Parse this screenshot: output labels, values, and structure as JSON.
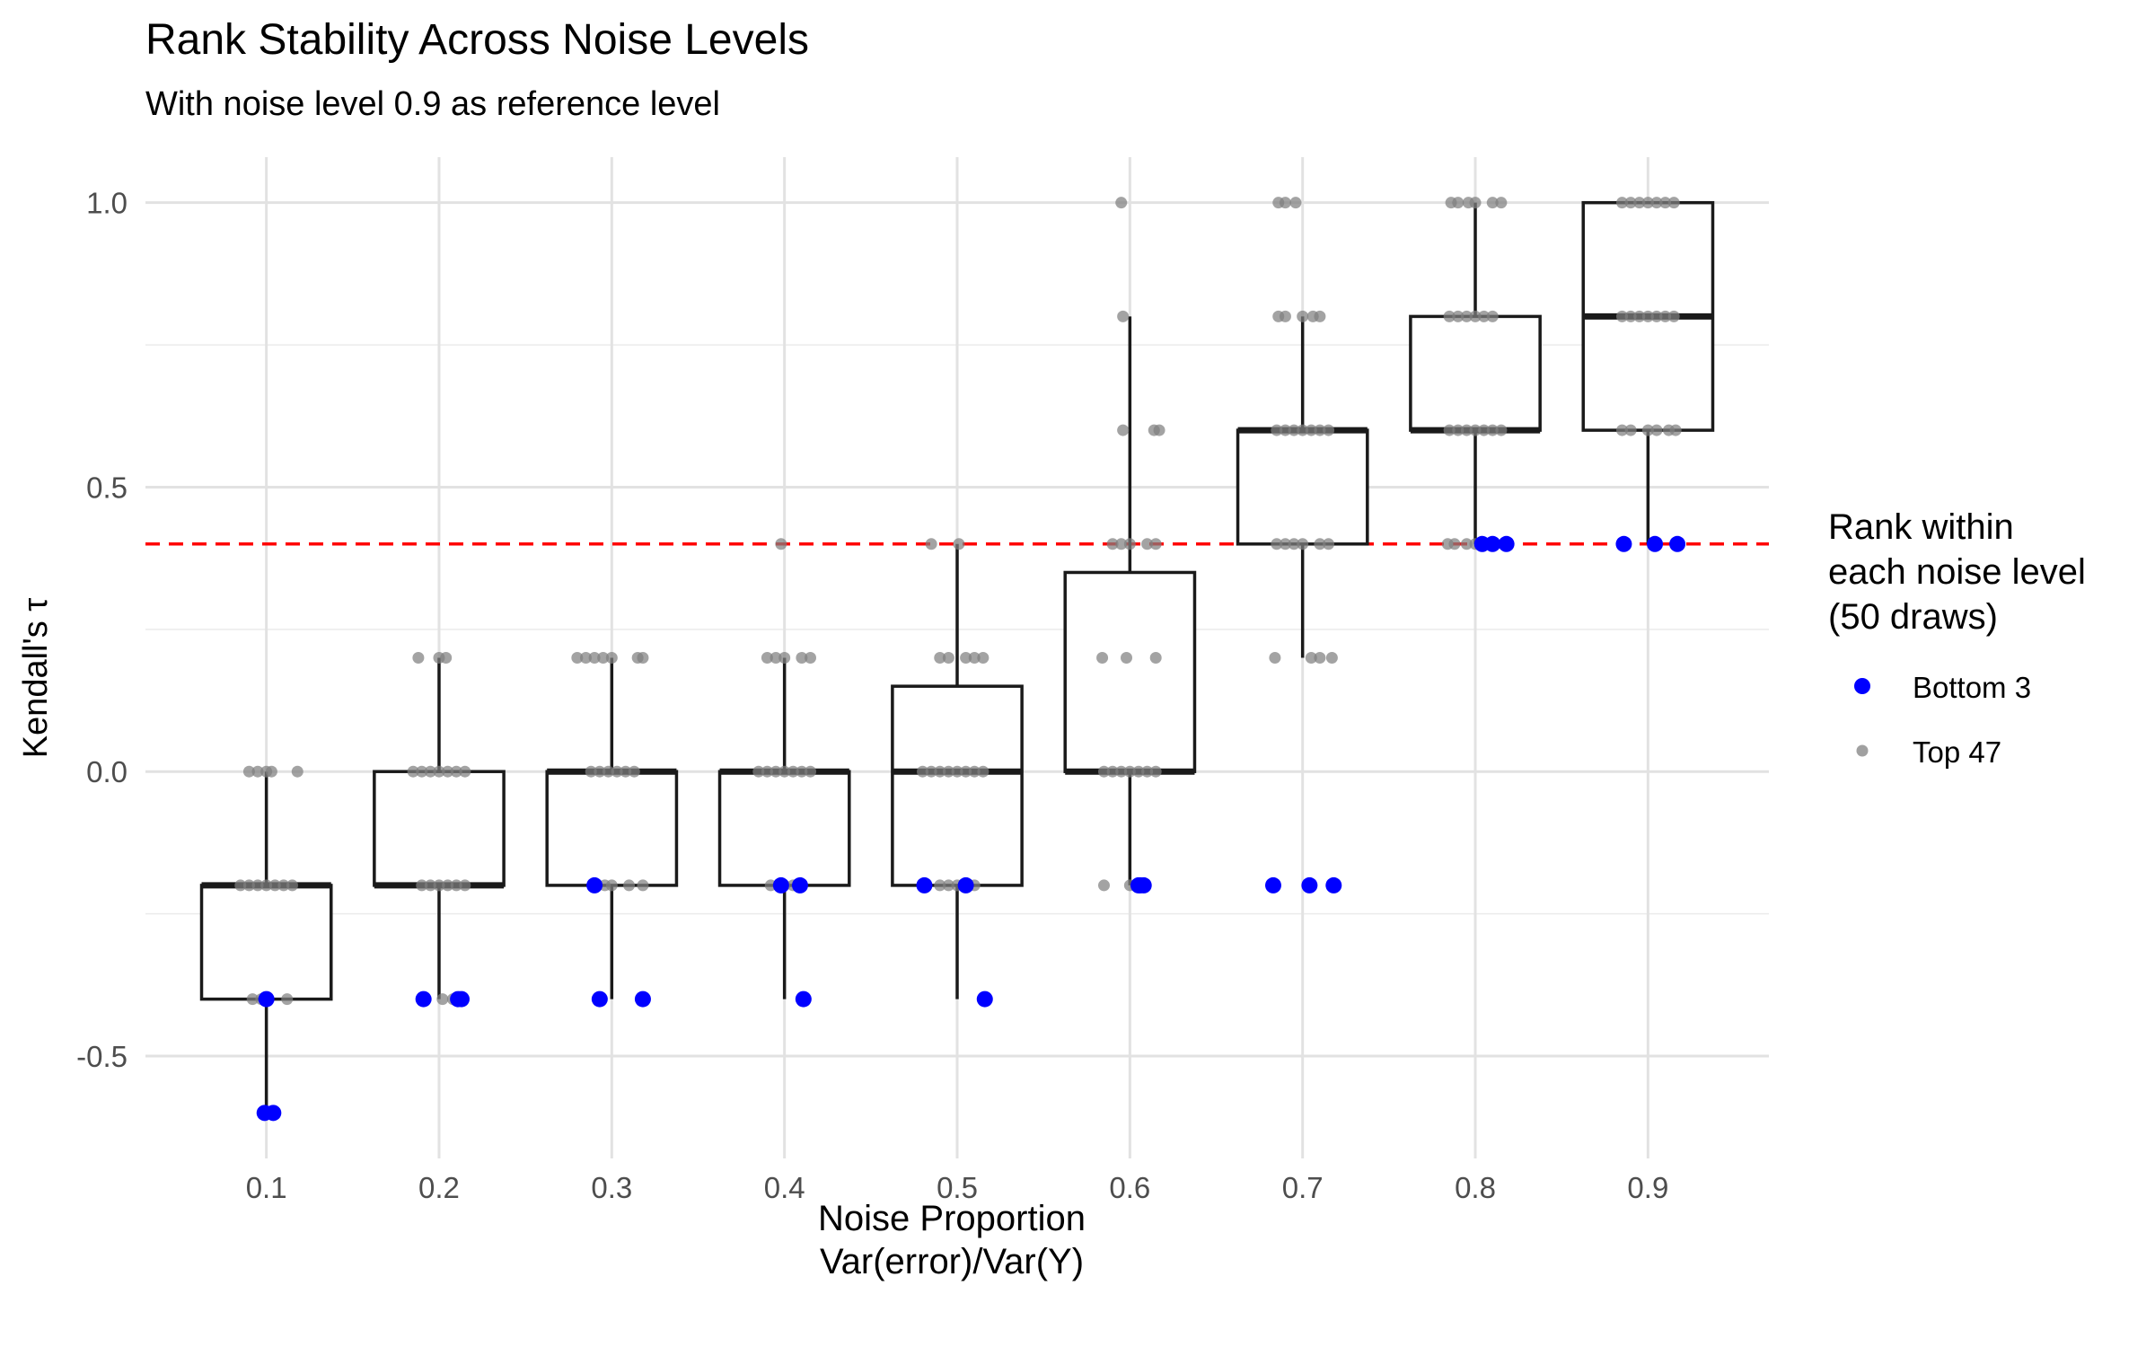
{
  "chart_data": {
    "type": "box",
    "title": "Rank Stability Across Noise Levels",
    "subtitle": "With noise level 0.9 as reference level",
    "xlabel_line1": "Noise Proportion",
    "xlabel_line2": "Var(error)/Var(Y)",
    "ylabel": "Kendall's τ",
    "categories": [
      "0.1",
      "0.2",
      "0.3",
      "0.4",
      "0.5",
      "0.6",
      "0.7",
      "0.8",
      "0.9"
    ],
    "x_values": [
      0.1,
      0.2,
      0.3,
      0.4,
      0.5,
      0.6,
      0.7,
      0.8,
      0.9
    ],
    "y_ticks": [
      -0.5,
      0.0,
      0.5,
      1.0
    ],
    "y_tick_labels": [
      "-0.5",
      "0.0",
      "0.5",
      "1.0"
    ],
    "ylim": [
      -0.68,
      1.08
    ],
    "xlim": [
      0.03,
      0.97
    ],
    "grid": true,
    "reference_line": {
      "y": 0.4,
      "color": "#ff0000",
      "style": "dashed"
    },
    "boxes": [
      {
        "x": 0.1,
        "q1": -0.4,
        "median": -0.2,
        "q3": -0.2,
        "whisker_low": -0.6,
        "whisker_high": 0.0
      },
      {
        "x": 0.2,
        "q1": -0.2,
        "median": -0.2,
        "q3": 0.0,
        "whisker_low": -0.4,
        "whisker_high": 0.2
      },
      {
        "x": 0.3,
        "q1": -0.2,
        "median": 0.0,
        "q3": 0.0,
        "whisker_low": -0.4,
        "whisker_high": 0.2
      },
      {
        "x": 0.4,
        "q1": -0.2,
        "median": 0.0,
        "q3": 0.0,
        "whisker_low": -0.4,
        "whisker_high": 0.2
      },
      {
        "x": 0.5,
        "q1": -0.2,
        "median": 0.0,
        "q3": 0.15,
        "whisker_low": -0.4,
        "whisker_high": 0.4
      },
      {
        "x": 0.6,
        "q1": 0.0,
        "median": 0.0,
        "q3": 0.35,
        "whisker_low": -0.2,
        "whisker_high": 0.8
      },
      {
        "x": 0.7,
        "q1": 0.4,
        "median": 0.6,
        "q3": 0.6,
        "whisker_low": 0.2,
        "whisker_high": 0.8
      },
      {
        "x": 0.8,
        "q1": 0.6,
        "median": 0.6,
        "q3": 0.8,
        "whisker_low": 0.4,
        "whisker_high": 1.0
      },
      {
        "x": 0.9,
        "q1": 0.6,
        "median": 0.8,
        "q3": 1.0,
        "whisker_low": 0.4,
        "whisker_high": 1.0
      }
    ],
    "legend": {
      "title_lines": [
        "Rank within",
        "each noise level",
        "(50 draws)"
      ],
      "placement": "right",
      "entries": [
        {
          "name": "Bottom 3",
          "color": "#0000ff"
        },
        {
          "name": "Top 47",
          "color": "#808080"
        }
      ]
    },
    "series": [
      {
        "name": "Bottom 3",
        "color": "#0000ff",
        "points": [
          {
            "x": 0.1,
            "y": -0.4
          },
          {
            "x": 0.099,
            "y": -0.6
          },
          {
            "x": 0.104,
            "y": -0.6
          },
          {
            "x": 0.191,
            "y": -0.4
          },
          {
            "x": 0.211,
            "y": -0.4
          },
          {
            "x": 0.213,
            "y": -0.4
          },
          {
            "x": 0.29,
            "y": -0.2
          },
          {
            "x": 0.293,
            "y": -0.4
          },
          {
            "x": 0.318,
            "y": -0.4
          },
          {
            "x": 0.398,
            "y": -0.2
          },
          {
            "x": 0.409,
            "y": -0.2
          },
          {
            "x": 0.411,
            "y": -0.4
          },
          {
            "x": 0.481,
            "y": -0.2
          },
          {
            "x": 0.505,
            "y": -0.2
          },
          {
            "x": 0.516,
            "y": -0.4
          },
          {
            "x": 0.605,
            "y": -0.2
          },
          {
            "x": 0.608,
            "y": -0.2
          },
          {
            "x": 0.606,
            "y": -0.2
          },
          {
            "x": 0.683,
            "y": -0.2
          },
          {
            "x": 0.704,
            "y": -0.2
          },
          {
            "x": 0.718,
            "y": -0.2
          },
          {
            "x": 0.804,
            "y": 0.4
          },
          {
            "x": 0.81,
            "y": 0.4
          },
          {
            "x": 0.818,
            "y": 0.4
          },
          {
            "x": 0.886,
            "y": 0.4
          },
          {
            "x": 0.904,
            "y": 0.4
          },
          {
            "x": 0.917,
            "y": 0.4
          }
        ]
      },
      {
        "name": "Top 47",
        "color": "#808080",
        "points": [
          {
            "x": 0.09,
            "y": 0.0
          },
          {
            "x": 0.095,
            "y": 0.0
          },
          {
            "x": 0.1,
            "y": 0.0
          },
          {
            "x": 0.103,
            "y": 0.0
          },
          {
            "x": 0.118,
            "y": 0.0
          },
          {
            "x": 0.085,
            "y": -0.2
          },
          {
            "x": 0.09,
            "y": -0.2
          },
          {
            "x": 0.095,
            "y": -0.2
          },
          {
            "x": 0.1,
            "y": -0.2
          },
          {
            "x": 0.105,
            "y": -0.2
          },
          {
            "x": 0.11,
            "y": -0.2
          },
          {
            "x": 0.115,
            "y": -0.2
          },
          {
            "x": 0.092,
            "y": -0.4
          },
          {
            "x": 0.097,
            "y": -0.4
          },
          {
            "x": 0.112,
            "y": -0.4
          },
          {
            "x": 0.188,
            "y": 0.2
          },
          {
            "x": 0.2,
            "y": 0.2
          },
          {
            "x": 0.204,
            "y": 0.2
          },
          {
            "x": 0.185,
            "y": 0.0
          },
          {
            "x": 0.19,
            "y": 0.0
          },
          {
            "x": 0.195,
            "y": 0.0
          },
          {
            "x": 0.2,
            "y": 0.0
          },
          {
            "x": 0.205,
            "y": 0.0
          },
          {
            "x": 0.21,
            "y": 0.0
          },
          {
            "x": 0.215,
            "y": 0.0
          },
          {
            "x": 0.19,
            "y": -0.2
          },
          {
            "x": 0.195,
            "y": -0.2
          },
          {
            "x": 0.2,
            "y": -0.2
          },
          {
            "x": 0.205,
            "y": -0.2
          },
          {
            "x": 0.21,
            "y": -0.2
          },
          {
            "x": 0.215,
            "y": -0.2
          },
          {
            "x": 0.202,
            "y": -0.4
          },
          {
            "x": 0.208,
            "y": -0.4
          },
          {
            "x": 0.28,
            "y": 0.2
          },
          {
            "x": 0.285,
            "y": 0.2
          },
          {
            "x": 0.29,
            "y": 0.2
          },
          {
            "x": 0.295,
            "y": 0.2
          },
          {
            "x": 0.3,
            "y": 0.2
          },
          {
            "x": 0.315,
            "y": 0.2
          },
          {
            "x": 0.318,
            "y": 0.2
          },
          {
            "x": 0.288,
            "y": 0.0
          },
          {
            "x": 0.293,
            "y": 0.0
          },
          {
            "x": 0.298,
            "y": 0.0
          },
          {
            "x": 0.303,
            "y": 0.0
          },
          {
            "x": 0.308,
            "y": 0.0
          },
          {
            "x": 0.313,
            "y": 0.0
          },
          {
            "x": 0.296,
            "y": -0.2
          },
          {
            "x": 0.3,
            "y": -0.2
          },
          {
            "x": 0.31,
            "y": -0.2
          },
          {
            "x": 0.318,
            "y": -0.2
          },
          {
            "x": 0.398,
            "y": 0.4
          },
          {
            "x": 0.39,
            "y": 0.2
          },
          {
            "x": 0.395,
            "y": 0.2
          },
          {
            "x": 0.4,
            "y": 0.2
          },
          {
            "x": 0.41,
            "y": 0.2
          },
          {
            "x": 0.415,
            "y": 0.2
          },
          {
            "x": 0.385,
            "y": 0.0
          },
          {
            "x": 0.39,
            "y": 0.0
          },
          {
            "x": 0.395,
            "y": 0.0
          },
          {
            "x": 0.4,
            "y": 0.0
          },
          {
            "x": 0.405,
            "y": 0.0
          },
          {
            "x": 0.41,
            "y": 0.0
          },
          {
            "x": 0.415,
            "y": 0.0
          },
          {
            "x": 0.392,
            "y": -0.2
          },
          {
            "x": 0.4,
            "y": -0.2
          },
          {
            "x": 0.405,
            "y": -0.2
          },
          {
            "x": 0.485,
            "y": 0.4
          },
          {
            "x": 0.501,
            "y": 0.4
          },
          {
            "x": 0.49,
            "y": 0.2
          },
          {
            "x": 0.495,
            "y": 0.2
          },
          {
            "x": 0.505,
            "y": 0.2
          },
          {
            "x": 0.51,
            "y": 0.2
          },
          {
            "x": 0.515,
            "y": 0.2
          },
          {
            "x": 0.48,
            "y": 0.0
          },
          {
            "x": 0.485,
            "y": 0.0
          },
          {
            "x": 0.49,
            "y": 0.0
          },
          {
            "x": 0.495,
            "y": 0.0
          },
          {
            "x": 0.5,
            "y": 0.0
          },
          {
            "x": 0.505,
            "y": 0.0
          },
          {
            "x": 0.51,
            "y": 0.0
          },
          {
            "x": 0.515,
            "y": 0.0
          },
          {
            "x": 0.49,
            "y": -0.2
          },
          {
            "x": 0.495,
            "y": -0.2
          },
          {
            "x": 0.5,
            "y": -0.2
          },
          {
            "x": 0.51,
            "y": -0.2
          },
          {
            "x": 0.595,
            "y": 1.0
          },
          {
            "x": 0.596,
            "y": 0.8
          },
          {
            "x": 0.596,
            "y": 0.6
          },
          {
            "x": 0.614,
            "y": 0.6
          },
          {
            "x": 0.617,
            "y": 0.6
          },
          {
            "x": 0.59,
            "y": 0.4
          },
          {
            "x": 0.595,
            "y": 0.4
          },
          {
            "x": 0.6,
            "y": 0.4
          },
          {
            "x": 0.61,
            "y": 0.4
          },
          {
            "x": 0.615,
            "y": 0.4
          },
          {
            "x": 0.584,
            "y": 0.2
          },
          {
            "x": 0.598,
            "y": 0.2
          },
          {
            "x": 0.615,
            "y": 0.2
          },
          {
            "x": 0.585,
            "y": 0.0
          },
          {
            "x": 0.59,
            "y": 0.0
          },
          {
            "x": 0.595,
            "y": 0.0
          },
          {
            "x": 0.6,
            "y": 0.0
          },
          {
            "x": 0.605,
            "y": 0.0
          },
          {
            "x": 0.61,
            "y": 0.0
          },
          {
            "x": 0.615,
            "y": 0.0
          },
          {
            "x": 0.585,
            "y": -0.2
          },
          {
            "x": 0.6,
            "y": -0.2
          },
          {
            "x": 0.686,
            "y": 1.0
          },
          {
            "x": 0.69,
            "y": 1.0
          },
          {
            "x": 0.696,
            "y": 1.0
          },
          {
            "x": 0.686,
            "y": 0.8
          },
          {
            "x": 0.69,
            "y": 0.8
          },
          {
            "x": 0.7,
            "y": 0.8
          },
          {
            "x": 0.706,
            "y": 0.8
          },
          {
            "x": 0.71,
            "y": 0.8
          },
          {
            "x": 0.685,
            "y": 0.6
          },
          {
            "x": 0.69,
            "y": 0.6
          },
          {
            "x": 0.695,
            "y": 0.6
          },
          {
            "x": 0.7,
            "y": 0.6
          },
          {
            "x": 0.705,
            "y": 0.6
          },
          {
            "x": 0.71,
            "y": 0.6
          },
          {
            "x": 0.715,
            "y": 0.6
          },
          {
            "x": 0.685,
            "y": 0.4
          },
          {
            "x": 0.69,
            "y": 0.4
          },
          {
            "x": 0.695,
            "y": 0.4
          },
          {
            "x": 0.7,
            "y": 0.4
          },
          {
            "x": 0.71,
            "y": 0.4
          },
          {
            "x": 0.715,
            "y": 0.4
          },
          {
            "x": 0.684,
            "y": 0.2
          },
          {
            "x": 0.705,
            "y": 0.2
          },
          {
            "x": 0.71,
            "y": 0.2
          },
          {
            "x": 0.717,
            "y": 0.2
          },
          {
            "x": 0.786,
            "y": 1.0
          },
          {
            "x": 0.79,
            "y": 1.0
          },
          {
            "x": 0.796,
            "y": 1.0
          },
          {
            "x": 0.8,
            "y": 1.0
          },
          {
            "x": 0.81,
            "y": 1.0
          },
          {
            "x": 0.815,
            "y": 1.0
          },
          {
            "x": 0.785,
            "y": 0.8
          },
          {
            "x": 0.79,
            "y": 0.8
          },
          {
            "x": 0.795,
            "y": 0.8
          },
          {
            "x": 0.8,
            "y": 0.8
          },
          {
            "x": 0.805,
            "y": 0.8
          },
          {
            "x": 0.81,
            "y": 0.8
          },
          {
            "x": 0.785,
            "y": 0.6
          },
          {
            "x": 0.79,
            "y": 0.6
          },
          {
            "x": 0.795,
            "y": 0.6
          },
          {
            "x": 0.8,
            "y": 0.6
          },
          {
            "x": 0.805,
            "y": 0.6
          },
          {
            "x": 0.81,
            "y": 0.6
          },
          {
            "x": 0.815,
            "y": 0.6
          },
          {
            "x": 0.784,
            "y": 0.4
          },
          {
            "x": 0.788,
            "y": 0.4
          },
          {
            "x": 0.795,
            "y": 0.4
          },
          {
            "x": 0.8,
            "y": 0.4
          },
          {
            "x": 0.885,
            "y": 1.0
          },
          {
            "x": 0.89,
            "y": 1.0
          },
          {
            "x": 0.895,
            "y": 1.0
          },
          {
            "x": 0.9,
            "y": 1.0
          },
          {
            "x": 0.905,
            "y": 1.0
          },
          {
            "x": 0.91,
            "y": 1.0
          },
          {
            "x": 0.915,
            "y": 1.0
          },
          {
            "x": 0.885,
            "y": 0.8
          },
          {
            "x": 0.89,
            "y": 0.8
          },
          {
            "x": 0.895,
            "y": 0.8
          },
          {
            "x": 0.9,
            "y": 0.8
          },
          {
            "x": 0.905,
            "y": 0.8
          },
          {
            "x": 0.91,
            "y": 0.8
          },
          {
            "x": 0.915,
            "y": 0.8
          },
          {
            "x": 0.885,
            "y": 0.6
          },
          {
            "x": 0.89,
            "y": 0.6
          },
          {
            "x": 0.9,
            "y": 0.6
          },
          {
            "x": 0.905,
            "y": 0.6
          },
          {
            "x": 0.912,
            "y": 0.6
          },
          {
            "x": 0.916,
            "y": 0.6
          }
        ]
      }
    ]
  }
}
